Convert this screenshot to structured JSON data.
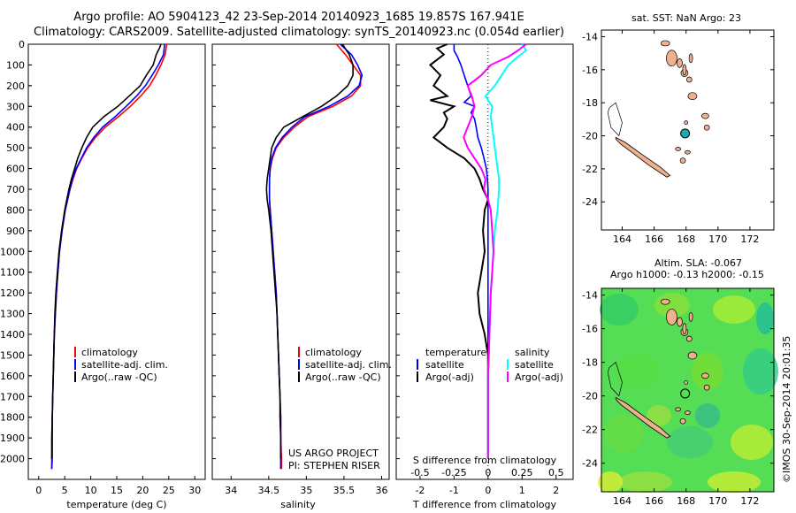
{
  "header": {
    "title_line1": "Argo profile: AO 5904123_42 23-Sep-2014 20140923_1685 19.857S 167.941E",
    "title_line2": "Climatology: CARS2009. Satellite-adjusted climatology: synTS_20140923.nc (0.054d earlier)"
  },
  "colors": {
    "climatology": "#ff0000",
    "satellite": "#0000ff",
    "argo": "#000000",
    "t_satellite": "#0000ff",
    "s_satellite": "#00ffff",
    "s_argo": "#ff00ff",
    "land": "#f0b090",
    "anomaly_field": "#44dd44"
  },
  "temperature_panel": {
    "xlabel": "temperature (deg C)",
    "xticks": [
      "0",
      "5",
      "10",
      "15",
      "20",
      "25",
      "30"
    ],
    "legend": [
      "climatology",
      "satellite-adj. clim.",
      "Argo(..raw -QC)"
    ]
  },
  "salinity_panel": {
    "xlabel": "salinity",
    "xticks": [
      "34",
      "34.5",
      "35",
      "35.5",
      "36"
    ],
    "legend": [
      "climatology",
      "satellite-adj. clim.",
      "Argo(..raw -QC)"
    ],
    "note_line1": "US ARGO PROJECT",
    "note_line2": "PI: STEPHEN RISER"
  },
  "difference_panel": {
    "xlabel": "T difference from climatology",
    "s_axis_label": "S difference from climatology",
    "xticks": [
      "-2",
      "-1",
      "0",
      "1",
      "2"
    ],
    "s_ticks": [
      "-0.5",
      "-0.25",
      "0",
      "0.25",
      "0.5"
    ],
    "legend_temp_title": "temperature",
    "legend_sal_title": "salinity",
    "legend_temp": [
      "satellite",
      "Argo(-adj)"
    ],
    "legend_sal": [
      "satellite",
      "Argo(-adj)"
    ]
  },
  "depth_ticks": [
    "0",
    "100",
    "200",
    "300",
    "400",
    "500",
    "600",
    "700",
    "800",
    "900",
    "1000",
    "1100",
    "1200",
    "1300",
    "1400",
    "1500",
    "1600",
    "1700",
    "1800",
    "1900",
    "2000"
  ],
  "sst_map": {
    "title": "sat. SST: NaN Argo: 23",
    "lat_ticks": [
      "-14",
      "-16",
      "-18",
      "-20",
      "-22",
      "-24"
    ],
    "lon_ticks": [
      "164",
      "166",
      "168",
      "170",
      "172"
    ],
    "float_lon": 167.941,
    "float_lat": -19.857
  },
  "sla_map": {
    "title_line1": "Altim. SLA: -0.067",
    "title_line2": "Argo h1000: -0.13 h2000: -0.15",
    "lat_ticks": [
      "-14",
      "-16",
      "-18",
      "-20",
      "-22",
      "-24"
    ],
    "lon_ticks": [
      "164",
      "166",
      "168",
      "170",
      "172"
    ],
    "float_lon": 167.941,
    "float_lat": -19.857
  },
  "side_stamp": "©IMOS 30-Sep-2014 20:01:35",
  "chart_data": [
    {
      "type": "line",
      "xlabel": "temperature (deg C)",
      "ylabel": "",
      "xlim": [
        -2,
        32
      ],
      "ylim": [
        2100,
        0
      ],
      "series": [
        {
          "name": "climatology",
          "depth": [
            0,
            50,
            100,
            150,
            200,
            250,
            300,
            350,
            400,
            450,
            500,
            550,
            600,
            650,
            700,
            800,
            900,
            1000,
            1100,
            1200,
            1300,
            1400,
            1500,
            1600,
            1700,
            1800,
            1900,
            2000,
            2050
          ],
          "values": [
            24.6,
            24.3,
            23.5,
            22.5,
            21.3,
            19.6,
            17.6,
            15.3,
            12.8,
            10.9,
            9.4,
            8.3,
            7.3,
            6.6,
            6.0,
            5.1,
            4.5,
            4.0,
            3.7,
            3.4,
            3.2,
            3.0,
            2.9,
            2.8,
            2.7,
            2.6,
            2.6,
            2.5,
            2.5
          ]
        },
        {
          "name": "satellite-adj. clim.",
          "depth": [
            0,
            50,
            100,
            150,
            200,
            250,
            300,
            350,
            400,
            450,
            500,
            550,
            600,
            650,
            700,
            800,
            900,
            1000,
            1100,
            1200,
            1300,
            1400,
            1500,
            1600,
            1700,
            1800,
            1900,
            2000,
            2050
          ],
          "values": [
            24.2,
            24.0,
            23.0,
            21.8,
            20.5,
            18.8,
            16.8,
            14.7,
            12.3,
            10.6,
            9.2,
            8.2,
            7.2,
            6.5,
            6.0,
            5.1,
            4.5,
            4.0,
            3.7,
            3.4,
            3.2,
            3.0,
            2.9,
            2.8,
            2.7,
            2.6,
            2.6,
            2.6,
            2.5
          ]
        },
        {
          "name": "Argo(..raw -QC)",
          "depth": [
            0,
            20,
            50,
            100,
            150,
            200,
            250,
            300,
            350,
            400,
            450,
            500,
            550,
            600,
            650,
            700,
            800,
            900,
            1000,
            1100,
            1200,
            1300,
            1400,
            1500,
            1600,
            1700,
            1800,
            1900,
            2000
          ],
          "values": [
            23.5,
            23.2,
            22.6,
            22.0,
            20.7,
            19.5,
            17.4,
            15.2,
            12.5,
            10.4,
            9.2,
            8.3,
            7.5,
            6.9,
            6.3,
            5.8,
            5.0,
            4.4,
            3.9,
            3.6,
            3.3,
            3.1,
            3.0,
            2.9,
            2.8,
            2.7,
            2.6,
            2.5,
            2.5
          ]
        }
      ]
    },
    {
      "type": "line",
      "xlabel": "salinity",
      "ylabel": "",
      "xlim": [
        33.75,
        36.1
      ],
      "ylim": [
        2100,
        0
      ],
      "series": [
        {
          "name": "climatology",
          "depth": [
            0,
            50,
            100,
            150,
            200,
            250,
            300,
            350,
            400,
            450,
            500,
            550,
            600,
            650,
            700,
            750,
            800,
            900,
            1000,
            1100,
            1200,
            1300,
            1400,
            1500,
            1600,
            1700,
            1800,
            1900,
            2000,
            2050
          ],
          "values": [
            35.4,
            35.52,
            35.62,
            35.72,
            35.72,
            35.6,
            35.35,
            35.02,
            34.84,
            34.7,
            34.6,
            34.55,
            34.52,
            34.51,
            34.51,
            34.51,
            34.52,
            34.54,
            34.56,
            34.58,
            34.6,
            34.61,
            34.62,
            34.63,
            34.64,
            34.65,
            34.66,
            34.66,
            34.67,
            34.67
          ]
        },
        {
          "name": "satellite-adj. clim.",
          "depth": [
            0,
            50,
            100,
            150,
            200,
            250,
            300,
            350,
            400,
            450,
            500,
            550,
            600,
            650,
            700,
            750,
            800,
            900,
            1000,
            1100,
            1200,
            1300,
            1400,
            1500,
            1600,
            1700,
            1800,
            1900,
            2000,
            2050
          ],
          "values": [
            35.45,
            35.6,
            35.68,
            35.74,
            35.7,
            35.55,
            35.3,
            34.98,
            34.81,
            34.68,
            34.59,
            34.54,
            34.52,
            34.51,
            34.51,
            34.51,
            34.52,
            34.54,
            34.56,
            34.58,
            34.6,
            34.61,
            34.62,
            34.63,
            34.64,
            34.65,
            34.66,
            34.66,
            34.66,
            34.66
          ]
        },
        {
          "name": "Argo(..raw -QC)",
          "depth": [
            0,
            50,
            100,
            150,
            200,
            250,
            300,
            350,
            400,
            450,
            500,
            550,
            600,
            650,
            700,
            750,
            800,
            900,
            1000,
            1100,
            1200,
            1300,
            1400,
            1500,
            1600,
            1700,
            1800,
            1900,
            2000
          ],
          "values": [
            35.48,
            35.57,
            35.62,
            35.62,
            35.55,
            35.4,
            35.2,
            34.95,
            34.7,
            34.6,
            34.54,
            34.52,
            34.5,
            34.48,
            34.47,
            34.48,
            34.5,
            34.53,
            34.55,
            34.57,
            34.59,
            34.61,
            34.62,
            34.63,
            34.64,
            34.65,
            34.65,
            34.66,
            34.66
          ]
        }
      ]
    },
    {
      "type": "line",
      "xlabel": "T difference from climatology",
      "ylabel": "",
      "xlim": [
        -2.7,
        2.5
      ],
      "s_axis": {
        "label": "S difference from climatology",
        "xlim": [
          -0.675,
          0.625
        ]
      },
      "ylim": [
        2100,
        0
      ],
      "series": [
        {
          "name": "temperature satellite",
          "depth": [
            0,
            30,
            60,
            100,
            150,
            200,
            250,
            280,
            300,
            330,
            360,
            400,
            450,
            500,
            550,
            600,
            650,
            700,
            800,
            900,
            1000,
            1100,
            1200,
            1500,
            1800,
            2000
          ],
          "values": [
            -1.0,
            -1.0,
            -0.9,
            -0.8,
            -0.7,
            -0.6,
            -0.5,
            -0.7,
            -0.4,
            -0.5,
            -0.4,
            -0.35,
            -0.3,
            -0.2,
            -0.12,
            -0.05,
            -0.02,
            0.0,
            0.0,
            0.0,
            0.0,
            0.0,
            0.0,
            0.0,
            0.0,
            0.0
          ]
        },
        {
          "name": "temperature Argo(-adj)",
          "depth": [
            0,
            20,
            50,
            100,
            150,
            200,
            250,
            270,
            300,
            330,
            360,
            400,
            450,
            500,
            550,
            600,
            650,
            700,
            750,
            800,
            900,
            1000,
            1100,
            1200,
            1300,
            1400,
            1500,
            1700,
            2000
          ],
          "values": [
            -1.2,
            -1.5,
            -1.3,
            -1.7,
            -1.4,
            -1.6,
            -1.2,
            -1.7,
            -1.0,
            -1.3,
            -1.2,
            -1.3,
            -1.6,
            -1.2,
            -0.7,
            -0.4,
            -0.25,
            -0.15,
            0.0,
            -0.1,
            -0.15,
            -0.1,
            -0.2,
            -0.3,
            -0.25,
            -0.1,
            0.0,
            0.0,
            0.0
          ]
        },
        {
          "name": "salinity satellite",
          "depth": [
            0,
            30,
            60,
            100,
            150,
            200,
            250,
            300,
            350,
            400,
            450,
            500,
            550,
            600,
            650,
            700,
            800,
            900,
            1000,
            1100,
            1200,
            1400,
            1600,
            1800,
            2000
          ],
          "values": [
            0.25,
            0.28,
            0.22,
            0.15,
            0.1,
            0.05,
            -0.02,
            0.03,
            0.02,
            0.03,
            0.04,
            0.05,
            0.06,
            0.07,
            0.08,
            0.08,
            0.07,
            0.05,
            0.04,
            0.03,
            0.02,
            0.01,
            0.0,
            0.0,
            0.0
          ]
        },
        {
          "name": "salinity Argo(-adj)",
          "depth": [
            0,
            30,
            60,
            100,
            150,
            200,
            250,
            300,
            350,
            400,
            450,
            500,
            550,
            600,
            650,
            700,
            750,
            800,
            900,
            1000,
            1100,
            1200,
            1400,
            1600,
            1800,
            2000
          ],
          "values": [
            0.28,
            0.22,
            0.15,
            0.02,
            -0.05,
            -0.15,
            -0.12,
            -0.1,
            -0.12,
            -0.15,
            -0.18,
            -0.15,
            -0.1,
            -0.05,
            -0.02,
            -0.03,
            0.0,
            0.02,
            0.03,
            0.04,
            0.03,
            0.02,
            0.01,
            0.0,
            0.0,
            0.0
          ]
        }
      ]
    }
  ]
}
